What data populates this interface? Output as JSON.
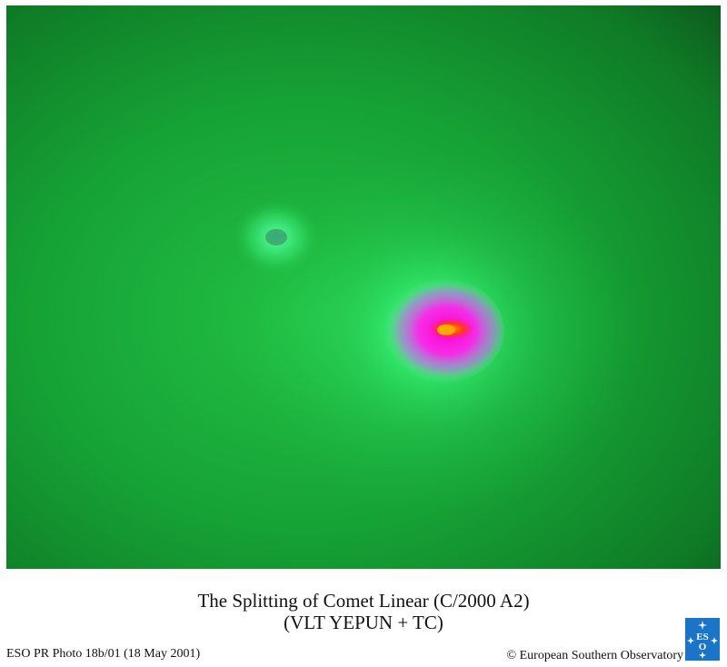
{
  "photo": {
    "subject": "Comet Linear (C/2000 A2) false-colour image"
  },
  "caption": {
    "title": "The Splitting of Comet Linear (C/2000 A2)",
    "subtitle": "(VLT YEPUN + TC)"
  },
  "footer": {
    "photo_id": "ESO PR Photo 18b/01 (18 May 2001)",
    "copyright": "© European Southern Observatory"
  },
  "logo": {
    "name": "eso-logo",
    "text": "ESO",
    "color": "#1a75c9"
  },
  "colors": {
    "background_green": "#1a9a34",
    "halo_green": "#33ff77",
    "core_magenta": "#ff00dd",
    "nucleus_red": "#ff2a2a",
    "nucleus_orange": "#ff8a00"
  }
}
